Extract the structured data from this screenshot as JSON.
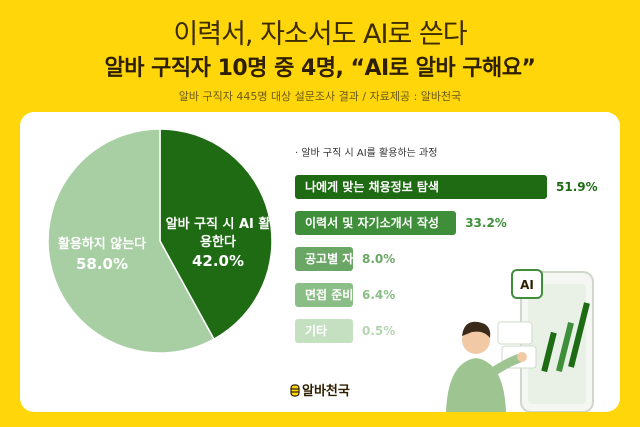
{
  "header": {
    "title_line1": "이력서, 자소서도 AI로 쓴다",
    "title_line2": "알바 구직자 10명 중 4명, “AI로 알바 구해요”",
    "subtitle": "알바 구직자 445명 대상 설문조사 결과 / 자료제공 : 알바천국"
  },
  "colors": {
    "background": "#ffd60a",
    "dark_green": "#1e6b14",
    "mid_green": "#3f8f3a",
    "light_green": "#a8cfa3",
    "faint_green": "#c5dfc1"
  },
  "chart_data": [
    {
      "type": "pie",
      "slices": [
        {
          "label": "알바 구직 시 AI 활용한다",
          "value": 42.0,
          "display": "42.0%",
          "color": "#1e6b14"
        },
        {
          "label": "활용하지 않는다",
          "value": 58.0,
          "display": "58.0%",
          "color": "#a8cfa3"
        }
      ]
    },
    {
      "type": "bar",
      "title": "· 알바 구직 시 AI를 활용하는 과정",
      "categories": [
        "나에게 맞는 채용정보 탐색",
        "이력서 및 자기소개서 작성",
        "공고별 자격 요건 파악",
        "면접 준비",
        "기타"
      ],
      "values": [
        51.9,
        33.2,
        8.0,
        6.4,
        0.5
      ],
      "value_labels": [
        "51.9%",
        "33.2%",
        "8.0%",
        "6.4%",
        "0.5%"
      ],
      "bar_colors": [
        "#1e6b14",
        "#3f8f3a",
        "#6aa765",
        "#8bbd86",
        "#c5dfc1"
      ],
      "value_colors": [
        "#1e6b14",
        "#3f8f3a",
        "#6aa765",
        "#8bbd86",
        "#b6d4b2"
      ]
    }
  ],
  "illustration": {
    "badge_text": "AI"
  },
  "logo": {
    "text": "알바천국"
  }
}
